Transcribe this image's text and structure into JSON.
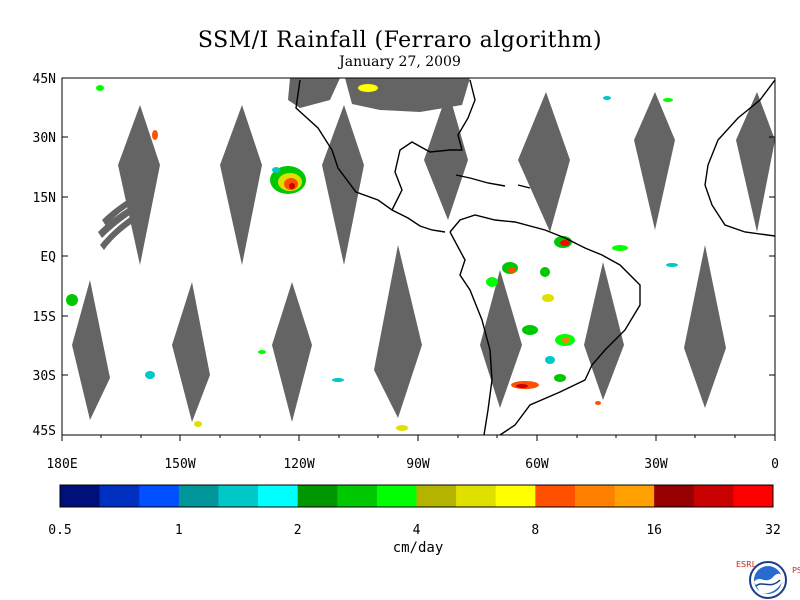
{
  "title": "SSM/I Rainfall (Ferraro algorithm)",
  "subtitle": "January 27, 2009",
  "latitude_labels": [
    "45N",
    "30N",
    "15N",
    "EQ",
    "15S",
    "30S",
    "45S"
  ],
  "longitude_labels": [
    "180E",
    "150W",
    "120W",
    "90W",
    "60W",
    "30W",
    "0"
  ],
  "map_extent": {
    "lon_min": -180,
    "lon_max": 0,
    "lat_min": -45,
    "lat_max": 45
  },
  "colorbar": {
    "colors": [
      "#00107a",
      "#0030c0",
      "#0050ff",
      "#00969a",
      "#00c8c8",
      "#00ffff",
      "#009600",
      "#00c800",
      "#00ff00",
      "#b4b400",
      "#e0e000",
      "#ffff00",
      "#ff5000",
      "#ff8000",
      "#ffa000",
      "#960000",
      "#c80000",
      "#ff0000"
    ],
    "tick_labels": [
      "0.5",
      "1",
      "2",
      "4",
      "8",
      "16",
      "32"
    ],
    "unit": "cm/day"
  },
  "no_data_color": "#646464",
  "logo": {
    "left_letters": "ESRL",
    "right_letters": "PSD",
    "name": "noaa-logo"
  }
}
